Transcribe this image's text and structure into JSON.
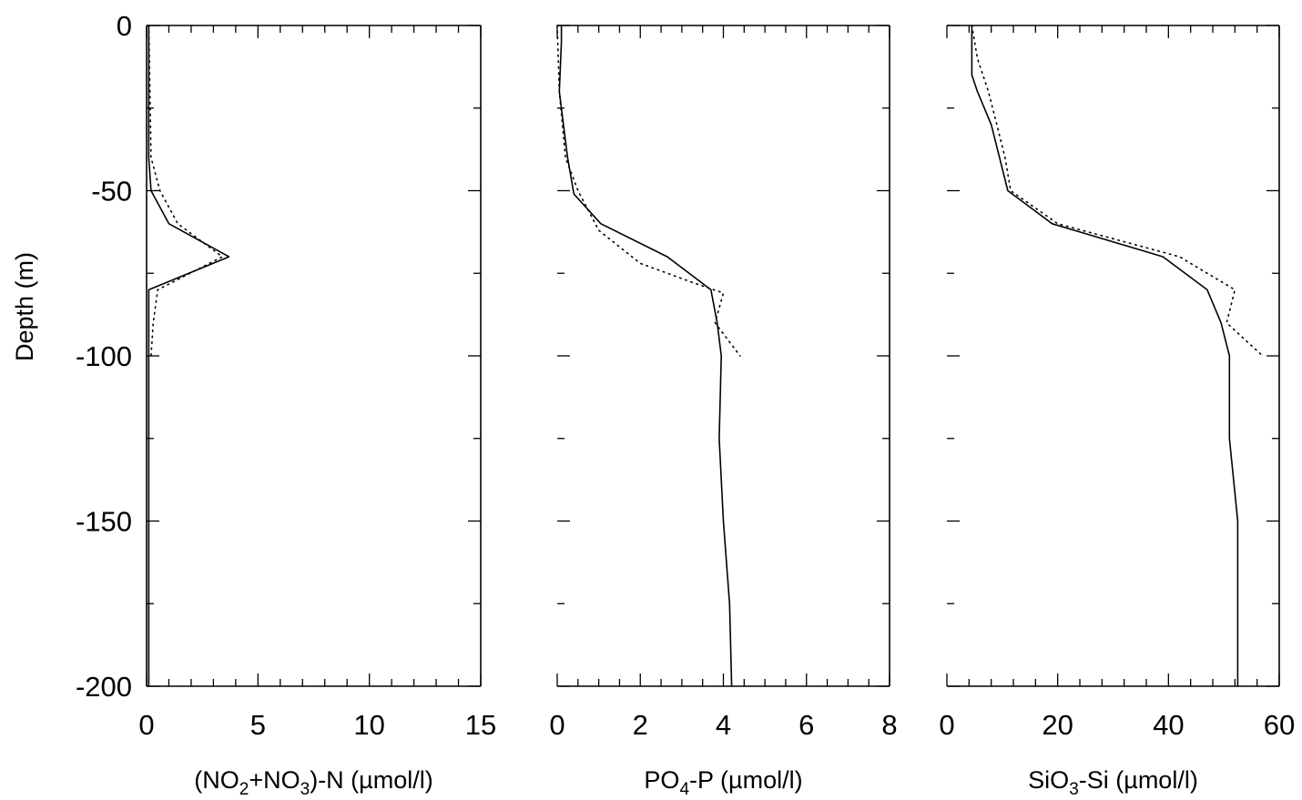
{
  "chart_data": {
    "type": "line",
    "layout": "three vertical profile panels sharing a depth (y) axis",
    "ylabel": "Depth (m)",
    "ylim": [
      -200,
      0
    ],
    "ytick_labels": [
      "0",
      "-50",
      "-100",
      "-150",
      "-200"
    ],
    "ytick_values": [
      0,
      -50,
      -100,
      -150,
      -200
    ],
    "grid": false,
    "panels": [
      {
        "xlabel": "(NO2+NO3)-N (µmol/l)",
        "xlabel_parts": [
          "(NO",
          "2",
          "+NO",
          "3",
          ")-N (µmol/l)"
        ],
        "xlim": [
          0,
          15
        ],
        "xtick_labels": [
          "0",
          "5",
          "10",
          "15"
        ],
        "xtick_values": [
          0,
          5,
          10,
          15
        ],
        "x_minor_step": 1,
        "series": [
          {
            "style": "solid",
            "points": [
              [
                0.1,
                0
              ],
              [
                0.1,
                -10
              ],
              [
                0.1,
                -20
              ],
              [
                0.1,
                -30
              ],
              [
                0.1,
                -40
              ],
              [
                0.2,
                -50
              ],
              [
                1.0,
                -60
              ],
              [
                3.7,
                -70
              ],
              [
                0.1,
                -80
              ],
              [
                0.1,
                -90
              ],
              [
                0.1,
                -100
              ],
              [
                0.1,
                -125
              ],
              [
                0.1,
                -150
              ],
              [
                0.1,
                -175
              ],
              [
                0.1,
                -200
              ]
            ]
          },
          {
            "style": "dotted",
            "points": [
              [
                0.1,
                0
              ],
              [
                0.15,
                -20
              ],
              [
                0.2,
                -40
              ],
              [
                0.6,
                -50
              ],
              [
                1.4,
                -60
              ],
              [
                3.4,
                -70
              ],
              [
                0.5,
                -80
              ],
              [
                0.3,
                -90
              ],
              [
                0.2,
                -100
              ]
            ]
          }
        ]
      },
      {
        "xlabel": "PO4-P (µmol/l)",
        "xlabel_parts": [
          "PO",
          "4",
          "-P (µmol/l)"
        ],
        "xlim": [
          0,
          8
        ],
        "xtick_labels": [
          "0",
          "2",
          "4",
          "6",
          "8"
        ],
        "xtick_values": [
          0,
          2,
          4,
          6,
          8
        ],
        "x_minor_step": 0.5,
        "series": [
          {
            "style": "solid",
            "points": [
              [
                0.1,
                0
              ],
              [
                0.1,
                -5
              ],
              [
                0.05,
                -20
              ],
              [
                0.15,
                -30
              ],
              [
                0.25,
                -40
              ],
              [
                0.4,
                -51
              ],
              [
                1.05,
                -60
              ],
              [
                2.65,
                -70
              ],
              [
                3.7,
                -80
              ],
              [
                3.85,
                -90
              ],
              [
                3.95,
                -100
              ],
              [
                3.9,
                -125
              ],
              [
                4.0,
                -150
              ],
              [
                4.15,
                -175
              ],
              [
                4.2,
                -200
              ]
            ]
          },
          {
            "style": "dotted",
            "points": [
              [
                0.0,
                0
              ],
              [
                0.05,
                -20
              ],
              [
                0.2,
                -40
              ],
              [
                0.5,
                -50
              ],
              [
                1.0,
                -62
              ],
              [
                2.0,
                -72
              ],
              [
                3.3,
                -78
              ],
              [
                4.0,
                -81
              ],
              [
                3.8,
                -90
              ],
              [
                4.4,
                -100
              ]
            ]
          }
        ]
      },
      {
        "xlabel": "SiO3-Si (µmol/l)",
        "xlabel_parts": [
          "SiO",
          "3",
          "-Si (µmol/l)"
        ],
        "xlim": [
          0,
          60
        ],
        "xtick_labels": [
          "0",
          "20",
          "40",
          "60"
        ],
        "xtick_values": [
          0,
          20,
          40,
          60
        ],
        "x_minor_step": 4,
        "series": [
          {
            "style": "solid",
            "points": [
              [
                4.5,
                0
              ],
              [
                4.5,
                -15
              ],
              [
                5.5,
                -20
              ],
              [
                8,
                -30
              ],
              [
                9.5,
                -40
              ],
              [
                11,
                -50
              ],
              [
                19,
                -60
              ],
              [
                39,
                -70
              ],
              [
                47,
                -80
              ],
              [
                49.5,
                -90
              ],
              [
                51,
                -100
              ],
              [
                51,
                -125
              ],
              [
                52.5,
                -150
              ],
              [
                52.5,
                -175
              ],
              [
                52.5,
                -200
              ]
            ]
          },
          {
            "style": "dotted",
            "points": [
              [
                4.5,
                0
              ],
              [
                5.5,
                -10
              ],
              [
                7.5,
                -20
              ],
              [
                9,
                -30
              ],
              [
                10.5,
                -40
              ],
              [
                11.5,
                -50
              ],
              [
                20,
                -60
              ],
              [
                42,
                -70
              ],
              [
                52,
                -80
              ],
              [
                50.5,
                -90
              ],
              [
                57,
                -100
              ]
            ]
          }
        ]
      }
    ]
  }
}
